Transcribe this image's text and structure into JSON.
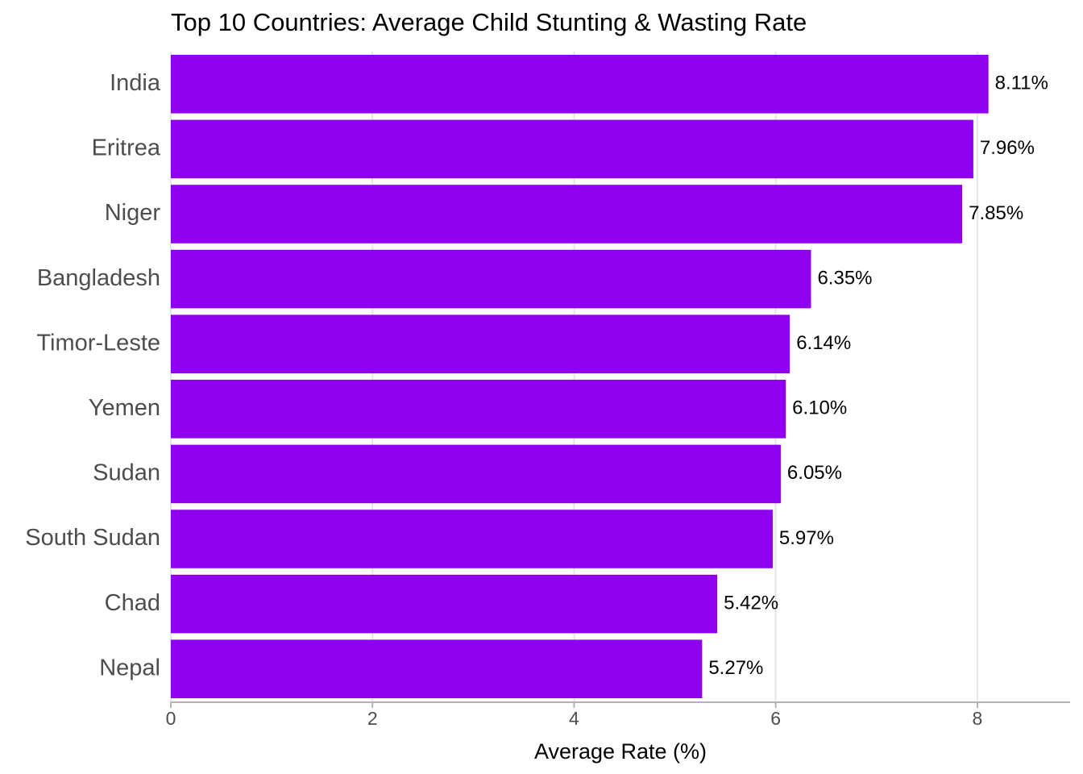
{
  "chart_data": {
    "type": "bar",
    "orientation": "horizontal",
    "title": "Top 10 Countries: Average Child Stunting & Wasting Rate",
    "xlabel": "Average Rate (%)",
    "ylabel": "",
    "categories": [
      "India",
      "Eritrea",
      "Niger",
      "Bangladesh",
      "Timor-Leste",
      "Yemen",
      "Sudan",
      "South Sudan",
      "Chad",
      "Nepal"
    ],
    "values": [
      8.11,
      7.96,
      7.85,
      6.35,
      6.14,
      6.1,
      6.05,
      5.97,
      5.42,
      5.27
    ],
    "value_labels": [
      "8.11%",
      "7.96%",
      "7.85%",
      "6.35%",
      "6.14%",
      "6.10%",
      "6.05%",
      "5.97%",
      "5.42%",
      "5.27%"
    ],
    "xlim": [
      0,
      8.92
    ],
    "x_ticks": [
      0,
      2,
      4,
      6,
      8
    ],
    "bar_color": "#8E00EE",
    "grid": "vertical-major",
    "legend": "none"
  }
}
